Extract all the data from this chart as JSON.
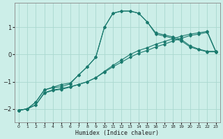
{
  "xlabel": "Humidex (Indice chaleur)",
  "bg_color": "#cceee8",
  "grid_color": "#aad8d0",
  "line_color": "#1a7a6e",
  "xlim": [
    -0.5,
    23.5
  ],
  "ylim": [
    -2.5,
    1.9
  ],
  "yticks": [
    -2,
    -1,
    0,
    1
  ],
  "xticks": [
    0,
    1,
    2,
    3,
    4,
    5,
    6,
    7,
    8,
    9,
    10,
    11,
    12,
    13,
    14,
    15,
    16,
    17,
    18,
    19,
    20,
    21,
    22,
    23
  ],
  "series": [
    {
      "x": [
        0,
        1,
        2,
        3,
        4,
        5,
        6,
        7,
        8,
        9,
        10,
        11,
        12,
        13,
        14,
        15,
        16,
        17,
        18,
        19,
        20,
        21,
        22,
        23
      ],
      "y": [
        -2.05,
        -2.0,
        -1.85,
        -1.4,
        -1.3,
        -1.25,
        -1.18,
        -1.1,
        -1.0,
        -0.85,
        -0.65,
        -0.45,
        -0.28,
        -0.1,
        0.05,
        0.15,
        0.28,
        0.38,
        0.5,
        0.6,
        0.7,
        0.75,
        0.82,
        0.1
      ]
    },
    {
      "x": [
        0,
        1,
        2,
        3,
        4,
        5,
        6,
        7,
        8,
        9,
        10,
        11,
        12,
        13,
        14,
        15,
        16,
        17,
        18,
        19,
        20,
        21,
        22,
        23
      ],
      "y": [
        -2.05,
        -2.0,
        -1.85,
        -1.42,
        -1.32,
        -1.28,
        -1.2,
        -1.1,
        -1.0,
        -0.85,
        -0.62,
        -0.4,
        -0.2,
        0.0,
        0.15,
        0.25,
        0.38,
        0.48,
        0.58,
        0.68,
        0.75,
        0.8,
        0.85,
        0.12
      ]
    },
    {
      "x": [
        0,
        1,
        2,
        3,
        4,
        5,
        6,
        7,
        8,
        9,
        10,
        11,
        12,
        13,
        14,
        15,
        16,
        17,
        18,
        19,
        20,
        21,
        22,
        23
      ],
      "y": [
        -2.05,
        -2.0,
        -1.75,
        -1.3,
        -1.2,
        -1.1,
        -1.05,
        -0.75,
        -0.45,
        -0.1,
        1.0,
        1.52,
        1.6,
        1.6,
        1.52,
        1.2,
        0.75,
        0.68,
        0.6,
        0.5,
        0.28,
        0.18,
        0.1,
        0.1
      ]
    },
    {
      "x": [
        0,
        1,
        2,
        3,
        4,
        5,
        6,
        7,
        8,
        9,
        10,
        11,
        12,
        13,
        14,
        15,
        16,
        17,
        18,
        19,
        20,
        21,
        22,
        23
      ],
      "y": [
        -2.05,
        -2.0,
        -1.75,
        -1.3,
        -1.22,
        -1.18,
        -1.08,
        -0.75,
        -0.45,
        -0.1,
        1.0,
        1.52,
        1.6,
        1.6,
        1.52,
        1.2,
        0.8,
        0.72,
        0.65,
        0.55,
        0.32,
        0.2,
        0.12,
        0.12
      ]
    }
  ]
}
